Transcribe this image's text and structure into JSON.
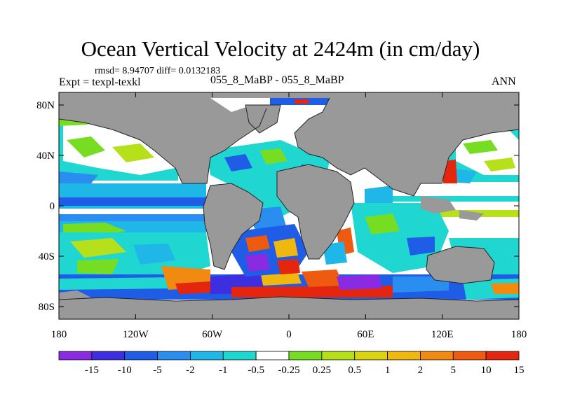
{
  "title": "Ocean Vertical Velocity at 2424m (in cm/day)",
  "stats": "rmsd= 8.94707 diff= 0.0132183",
  "expt": "Expt = texpl-texkl",
  "case": "055_8_MaBP - 055_8_MaBP",
  "season": "ANN",
  "map": {
    "projection": "cylindrical-equidistant",
    "lon_range": [
      -180,
      180
    ],
    "lat_range": [
      -90,
      90
    ],
    "land_color": "#999999",
    "y_ticks": [
      {
        "lat": 80,
        "label": "80N"
      },
      {
        "lat": 40,
        "label": "40N"
      },
      {
        "lat": 0,
        "label": "0"
      },
      {
        "lat": -40,
        "label": "40S"
      },
      {
        "lat": -80,
        "label": "80S"
      }
    ],
    "x_ticks": [
      {
        "lon": -180,
        "label": "180"
      },
      {
        "lon": -120,
        "label": "120W"
      },
      {
        "lon": -60,
        "label": "60W"
      },
      {
        "lon": 0,
        "label": "0"
      },
      {
        "lon": 60,
        "label": "60E"
      },
      {
        "lon": 120,
        "label": "120E"
      },
      {
        "lon": 180,
        "label": "180"
      }
    ]
  },
  "colorbar": {
    "colors": [
      "#8a2be2",
      "#3d2ee0",
      "#1f5de6",
      "#2a8ef0",
      "#1fb7e8",
      "#20d6d0",
      "#ffffff",
      "#77dd22",
      "#b6e01a",
      "#d9d40f",
      "#f0b70f",
      "#f08a10",
      "#ee5a10",
      "#e4260e"
    ],
    "labels": [
      "-15",
      "-10",
      "-5",
      "-2",
      "-1",
      "-0.5",
      "-0.25",
      "0.25",
      "0.5",
      "1",
      "2",
      "5",
      "10",
      "15"
    ]
  }
}
